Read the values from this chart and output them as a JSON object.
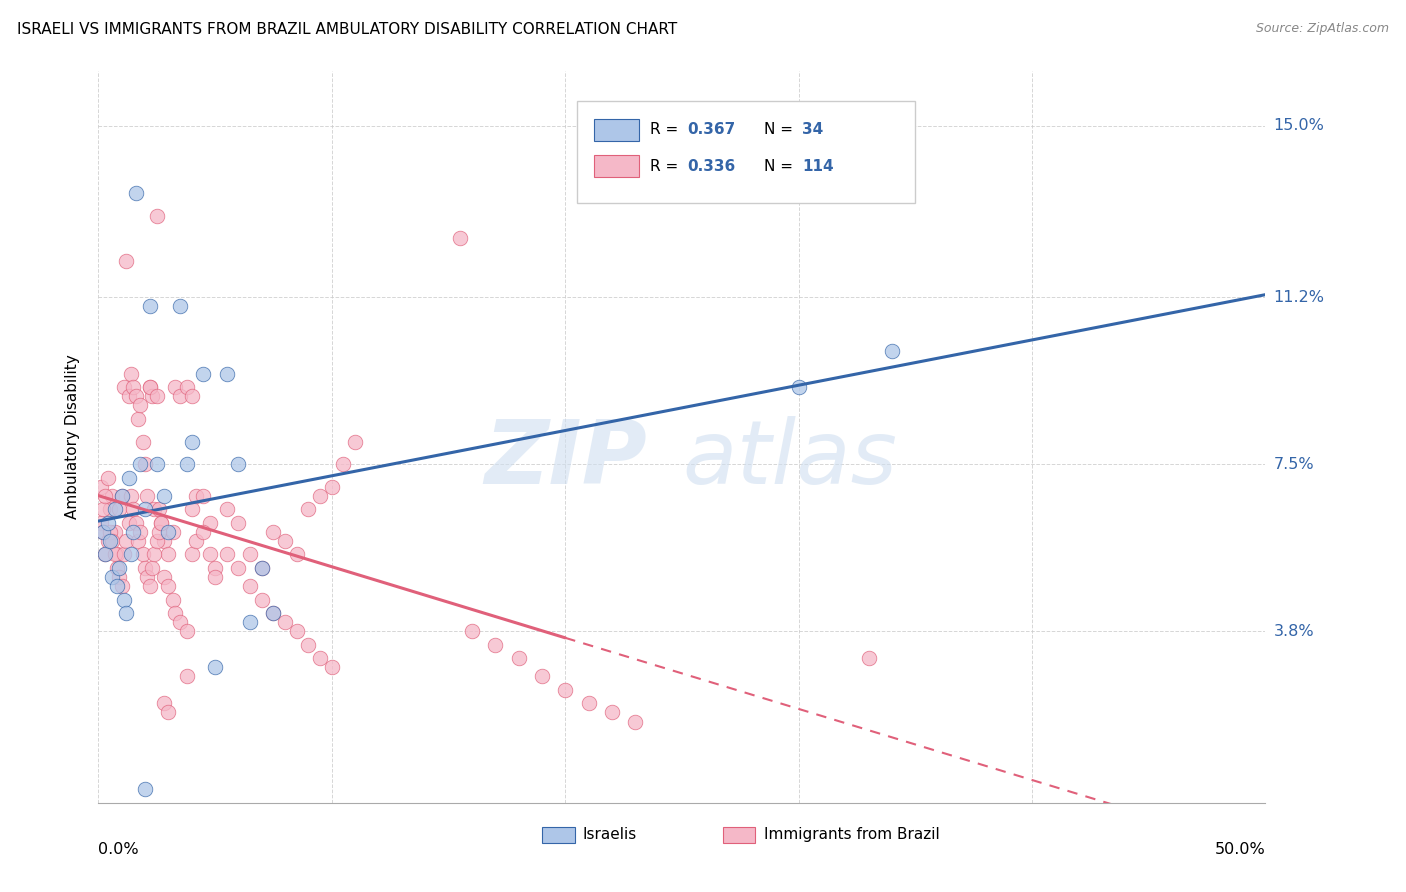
{
  "title": "ISRAELI VS IMMIGRANTS FROM BRAZIL AMBULATORY DISABILITY CORRELATION CHART",
  "source": "Source: ZipAtlas.com",
  "ylabel": "Ambulatory Disability",
  "ytick_labels": [
    "3.8%",
    "7.5%",
    "11.2%",
    "15.0%"
  ],
  "ytick_values": [
    0.038,
    0.075,
    0.112,
    0.15
  ],
  "xmin": 0.0,
  "xmax": 0.5,
  "ymin": 0.0,
  "ymax": 0.162,
  "israelis_color": "#aec6e8",
  "brazil_color": "#f5b8c8",
  "israeli_line_color": "#3465a8",
  "brazil_line_color": "#e0607a",
  "israelis_R": 0.367,
  "israelis_N": 34,
  "brazil_R": 0.336,
  "brazil_N": 114,
  "legend_label_israelis": "Israelis",
  "legend_label_brazil": "Immigrants from Brazil",
  "israelis_x": [
    0.002,
    0.003,
    0.004,
    0.005,
    0.006,
    0.007,
    0.008,
    0.009,
    0.01,
    0.011,
    0.012,
    0.013,
    0.014,
    0.015,
    0.016,
    0.018,
    0.02,
    0.022,
    0.025,
    0.028,
    0.03,
    0.035,
    0.04,
    0.045,
    0.05,
    0.055,
    0.06,
    0.065,
    0.07,
    0.075,
    0.3,
    0.34,
    0.02,
    0.038
  ],
  "israelis_y": [
    0.06,
    0.055,
    0.062,
    0.058,
    0.05,
    0.065,
    0.048,
    0.052,
    0.068,
    0.045,
    0.042,
    0.072,
    0.055,
    0.06,
    0.135,
    0.075,
    0.065,
    0.11,
    0.075,
    0.068,
    0.06,
    0.11,
    0.08,
    0.095,
    0.03,
    0.095,
    0.075,
    0.04,
    0.052,
    0.042,
    0.092,
    0.1,
    0.003,
    0.075
  ],
  "brazil_x": [
    0.001,
    0.002,
    0.003,
    0.004,
    0.005,
    0.006,
    0.007,
    0.008,
    0.009,
    0.01,
    0.011,
    0.012,
    0.013,
    0.014,
    0.015,
    0.016,
    0.017,
    0.018,
    0.019,
    0.02,
    0.021,
    0.022,
    0.023,
    0.024,
    0.025,
    0.026,
    0.027,
    0.028,
    0.03,
    0.032,
    0.033,
    0.035,
    0.038,
    0.04,
    0.042,
    0.045,
    0.048,
    0.05,
    0.055,
    0.06,
    0.065,
    0.07,
    0.075,
    0.08,
    0.085,
    0.09,
    0.095,
    0.1,
    0.105,
    0.11,
    0.001,
    0.002,
    0.003,
    0.004,
    0.005,
    0.006,
    0.007,
    0.008,
    0.009,
    0.01,
    0.011,
    0.012,
    0.013,
    0.014,
    0.015,
    0.016,
    0.017,
    0.018,
    0.019,
    0.02,
    0.021,
    0.022,
    0.023,
    0.024,
    0.025,
    0.026,
    0.027,
    0.028,
    0.03,
    0.032,
    0.033,
    0.035,
    0.038,
    0.04,
    0.042,
    0.045,
    0.048,
    0.05,
    0.055,
    0.06,
    0.065,
    0.07,
    0.075,
    0.08,
    0.085,
    0.09,
    0.095,
    0.1,
    0.155,
    0.16,
    0.17,
    0.18,
    0.19,
    0.2,
    0.21,
    0.22,
    0.23,
    0.33,
    0.038,
    0.04,
    0.022,
    0.025,
    0.028,
    0.03
  ],
  "brazil_y": [
    0.062,
    0.06,
    0.055,
    0.058,
    0.065,
    0.068,
    0.06,
    0.055,
    0.065,
    0.068,
    0.092,
    0.12,
    0.09,
    0.095,
    0.092,
    0.09,
    0.085,
    0.088,
    0.08,
    0.075,
    0.068,
    0.092,
    0.09,
    0.065,
    0.13,
    0.065,
    0.062,
    0.058,
    0.055,
    0.06,
    0.092,
    0.09,
    0.028,
    0.065,
    0.068,
    0.068,
    0.062,
    0.052,
    0.065,
    0.062,
    0.055,
    0.052,
    0.06,
    0.058,
    0.055,
    0.065,
    0.068,
    0.07,
    0.075,
    0.08,
    0.07,
    0.065,
    0.068,
    0.072,
    0.06,
    0.058,
    0.055,
    0.052,
    0.05,
    0.048,
    0.055,
    0.058,
    0.062,
    0.068,
    0.065,
    0.062,
    0.058,
    0.06,
    0.055,
    0.052,
    0.05,
    0.048,
    0.052,
    0.055,
    0.058,
    0.06,
    0.062,
    0.05,
    0.048,
    0.045,
    0.042,
    0.04,
    0.038,
    0.055,
    0.058,
    0.06,
    0.055,
    0.05,
    0.055,
    0.052,
    0.048,
    0.045,
    0.042,
    0.04,
    0.038,
    0.035,
    0.032,
    0.03,
    0.125,
    0.038,
    0.035,
    0.032,
    0.028,
    0.025,
    0.022,
    0.02,
    0.018,
    0.032,
    0.092,
    0.09,
    0.092,
    0.09,
    0.022,
    0.02
  ]
}
